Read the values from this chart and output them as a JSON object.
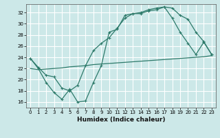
{
  "xlabel": "Humidex (Indice chaleur)",
  "background_color": "#cce8e8",
  "grid_color": "#ffffff",
  "line_color": "#2d7a6a",
  "xlim": [
    -0.5,
    23.5
  ],
  "ylim": [
    15.0,
    33.5
  ],
  "xticks": [
    0,
    1,
    2,
    3,
    4,
    5,
    6,
    7,
    8,
    9,
    10,
    11,
    12,
    13,
    14,
    15,
    16,
    17,
    18,
    19,
    20,
    21,
    22,
    23
  ],
  "yticks": [
    16,
    18,
    20,
    22,
    24,
    26,
    28,
    30,
    32
  ],
  "line1_x": [
    0,
    1,
    2,
    3,
    4,
    5,
    6,
    7,
    8,
    9,
    10,
    11,
    12,
    13,
    14,
    15,
    16,
    17,
    18,
    19,
    20,
    21,
    22,
    23
  ],
  "line1_y": [
    23.8,
    22.0,
    19.5,
    17.7,
    16.5,
    18.3,
    16.0,
    16.2,
    19.5,
    22.5,
    28.5,
    29.0,
    31.5,
    31.8,
    31.8,
    32.3,
    32.5,
    33.0,
    32.8,
    31.5,
    30.8,
    28.5,
    26.8,
    24.5
  ],
  "line2_x": [
    0,
    1,
    2,
    3,
    4,
    5,
    6,
    7,
    8,
    9,
    10,
    11,
    12,
    13,
    14,
    15,
    16,
    17,
    18,
    19,
    20,
    21,
    22,
    23
  ],
  "line2_y": [
    23.8,
    22.2,
    20.8,
    20.5,
    18.5,
    18.0,
    19.0,
    22.5,
    25.2,
    26.5,
    27.5,
    29.2,
    31.0,
    31.8,
    32.0,
    32.5,
    32.8,
    33.0,
    31.0,
    28.5,
    26.5,
    24.5,
    26.7,
    24.5
  ],
  "line3_x": [
    0,
    1,
    2,
    3,
    4,
    5,
    6,
    7,
    8,
    9,
    10,
    11,
    12,
    13,
    14,
    15,
    16,
    17,
    18,
    19,
    20,
    21,
    22,
    23
  ],
  "line3_y": [
    22.0,
    21.8,
    21.9,
    22.0,
    22.1,
    22.3,
    22.4,
    22.5,
    22.7,
    22.8,
    22.9,
    23.0,
    23.1,
    23.2,
    23.3,
    23.4,
    23.5,
    23.6,
    23.7,
    23.8,
    23.9,
    24.0,
    24.1,
    24.3
  ]
}
